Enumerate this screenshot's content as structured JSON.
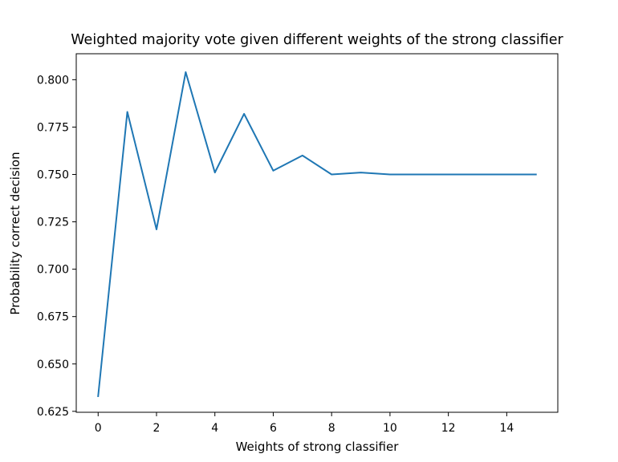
{
  "chart_data": {
    "type": "line",
    "title": "Weighted majority vote given different weights of the strong classifier",
    "xlabel": "Weights of strong classifier",
    "ylabel": "Probability correct decision",
    "xlim": [
      -0.75,
      15.75
    ],
    "ylim": [
      0.6245,
      0.8137
    ],
    "xticks": [
      0,
      2,
      4,
      6,
      8,
      10,
      12,
      14
    ],
    "xtick_labels": [
      "0",
      "2",
      "4",
      "6",
      "8",
      "10",
      "12",
      "14"
    ],
    "yticks": [
      0.625,
      0.65,
      0.675,
      0.7,
      0.725,
      0.75,
      0.775,
      0.8
    ],
    "ytick_labels": [
      "0.625",
      "0.650",
      "0.675",
      "0.700",
      "0.725",
      "0.750",
      "0.775",
      "0.800"
    ],
    "grid": false,
    "series": [
      {
        "color": "#1f77b4",
        "x": [
          0,
          1,
          2,
          3,
          4,
          5,
          6,
          7,
          8,
          9,
          10,
          11,
          12,
          13,
          14,
          15
        ],
        "y": [
          0.633,
          0.783,
          0.721,
          0.804,
          0.751,
          0.782,
          0.752,
          0.76,
          0.75,
          0.751,
          0.75,
          0.75,
          0.75,
          0.75,
          0.75,
          0.75
        ]
      }
    ]
  }
}
